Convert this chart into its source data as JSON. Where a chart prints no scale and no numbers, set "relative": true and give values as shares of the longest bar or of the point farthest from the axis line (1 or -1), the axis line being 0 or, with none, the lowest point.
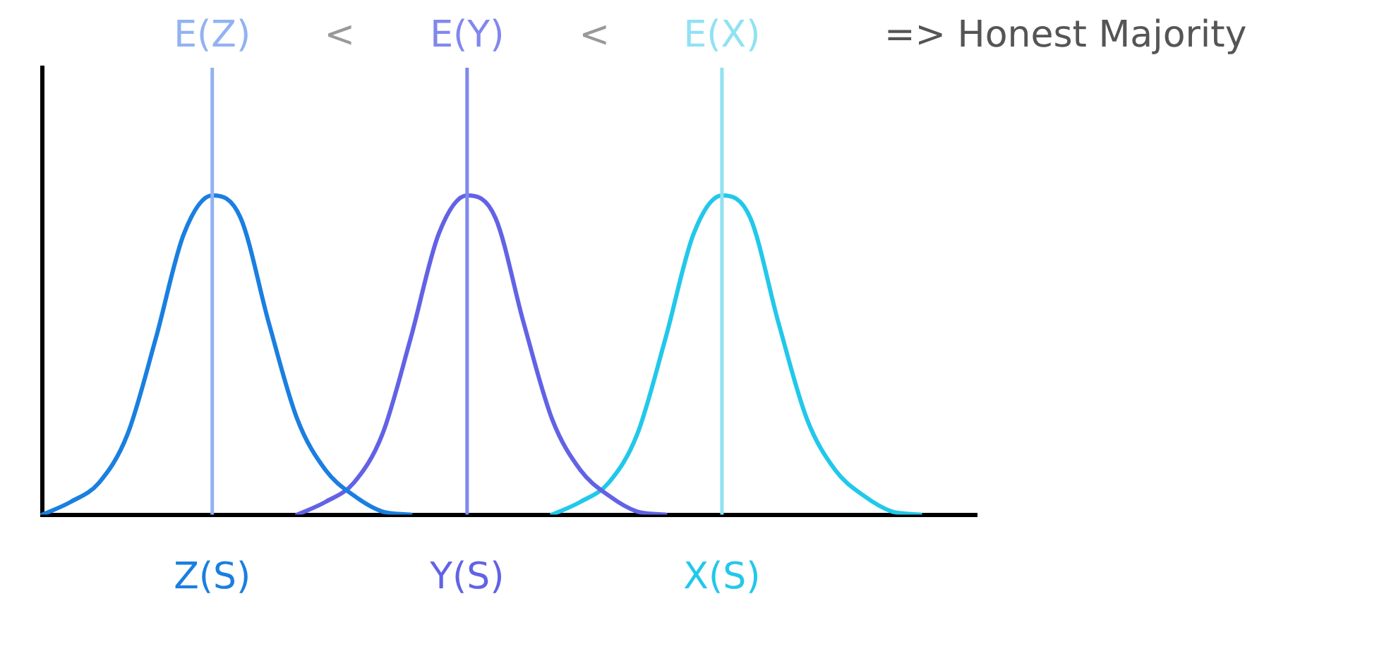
{
  "chart_data": {
    "type": "line",
    "relative": true,
    "grid": false,
    "legend": false,
    "marker": "none",
    "line_style": "solid",
    "tick_labels": "x",
    "categories": [
      null,
      null,
      null,
      null,
      null,
      null,
      "Z(S)",
      null,
      null,
      null,
      null,
      null,
      null,
      null,
      null,
      "Y(S)",
      null,
      null,
      null,
      null,
      null,
      null,
      null,
      null,
      "X(S)",
      null,
      null,
      null,
      null,
      null,
      null,
      null,
      null,
      null
    ],
    "series": [
      {
        "color": "#1a7fe0",
        "values": [
          0,
          0.04,
          0.1,
          0.25,
          0.55,
          0.88,
          1,
          0.93,
          0.6,
          0.3,
          0.14,
          0.06,
          0.01,
          0,
          null,
          null,
          null,
          null,
          null,
          null,
          null,
          null,
          null,
          null,
          null,
          null,
          null,
          null,
          null,
          null,
          null,
          null,
          null,
          null
        ]
      },
      {
        "color": "#6262e6",
        "values": [
          null,
          null,
          null,
          null,
          null,
          null,
          null,
          null,
          null,
          0,
          0.04,
          0.1,
          0.25,
          0.55,
          0.88,
          1,
          0.93,
          0.6,
          0.3,
          0.14,
          0.06,
          0.01,
          0,
          null,
          null,
          null,
          null,
          null,
          null,
          null,
          null,
          null,
          null,
          null
        ]
      },
      {
        "color": "#22c8ea",
        "values": [
          null,
          null,
          null,
          null,
          null,
          null,
          null,
          null,
          null,
          null,
          null,
          null,
          null,
          null,
          null,
          null,
          null,
          null,
          0,
          0.04,
          0.1,
          0.25,
          0.55,
          0.88,
          1,
          0.93,
          0.6,
          0.3,
          0.14,
          0.06,
          0.01,
          0,
          null,
          null
        ]
      }
    ],
    "ref_lines": [
      {
        "axis": "x",
        "value": "Z(S)",
        "label": "E(Z)",
        "color": "#92b2f2"
      },
      {
        "axis": "x",
        "value": "Y(S)",
        "label": "E(Y)",
        "color": "#8088ee"
      },
      {
        "axis": "x",
        "value": "X(S)",
        "label": "E(X)",
        "color": "#90e2f2"
      }
    ],
    "annotations": [
      "<",
      "<",
      "=> Honest Majority"
    ]
  }
}
